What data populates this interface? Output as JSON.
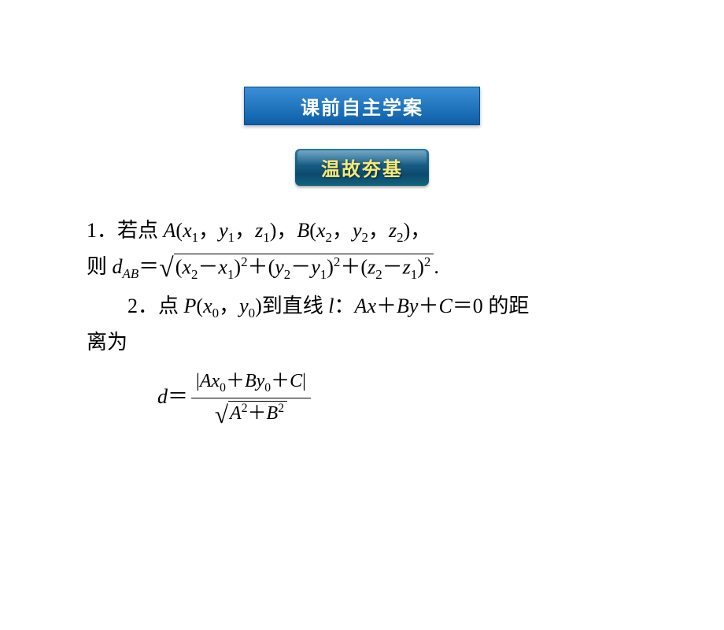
{
  "colors": {
    "page_bg": "#ffffff",
    "text": "#000000",
    "header_grad_top": "#3a8fd6",
    "header_grad_bottom": "#0d5fa8",
    "header_border": "#0a4d8a",
    "header_text": "#ffffff",
    "sub_grad_top": "#2a7aa8",
    "sub_grad_mid": "#0c4a6e",
    "sub_grad_bottom": "#12657c",
    "sub_text": "#f5e97a"
  },
  "typography": {
    "body_font": "SimSun / Times New Roman serif",
    "badge_font": "SimHei sans-serif",
    "body_size_pt": 20,
    "badge_size_pt": 18
  },
  "header": {
    "title": "课前自主学案"
  },
  "subheader": {
    "title": "温故夯基"
  },
  "item1": {
    "label": "1．",
    "lead": "若点 ",
    "A": "A",
    "A_args": "(x",
    "A_sub1": "1",
    "A_mid1": "，y",
    "A_sub2": "1",
    "A_mid2": "，z",
    "A_sub3": "1",
    "A_close": ")，",
    "B": "B",
    "B_args": "(x",
    "B_sub1": "2",
    "B_mid1": "，y",
    "B_sub2": "2",
    "B_mid2": "，z",
    "B_sub3": "2",
    "B_close": ")，",
    "then": "则 ",
    "d": "d",
    "d_sub": "AB",
    "eq": "＝",
    "rootcontent_x_open": "(",
    "x2": "x",
    "x2s": "2",
    "minus": "－",
    "x1": "x",
    "x1s": "1",
    "close": ")",
    "sq": "2",
    "plus": "＋",
    "y2": "y",
    "y2s": "2",
    "y1": "y",
    "y1s": "1",
    "z2": "z",
    "z2s": "2",
    "z1": "z",
    "z1s": "1",
    "period": "."
  },
  "item2": {
    "label": "2．",
    "lead": "点 ",
    "P": "P",
    "P_args": "(x",
    "P_sub1": "0",
    "P_mid": "，y",
    "P_sub2": "0",
    "P_close": ")",
    "to": "到直线 ",
    "l": "l",
    "colon": "：",
    "eqline_A": "A",
    "eqline_x": "x",
    "plus": "＋",
    "eqline_B": "B",
    "eqline_y": "y",
    "eqline_C": "C",
    "eqzero": "＝0 ",
    "tail": "的距",
    "tail2": "离为",
    "d": "d",
    "eq": "＝",
    "num_bar1": "|",
    "num_A": "A",
    "num_x": "x",
    "num_x0": "0",
    "num_B": "B",
    "num_y": "y",
    "num_y0": "0",
    "num_C": "C",
    "num_bar2": "|",
    "den_A": "A",
    "den_A2": "2",
    "den_B": "B",
    "den_B2": "2"
  }
}
